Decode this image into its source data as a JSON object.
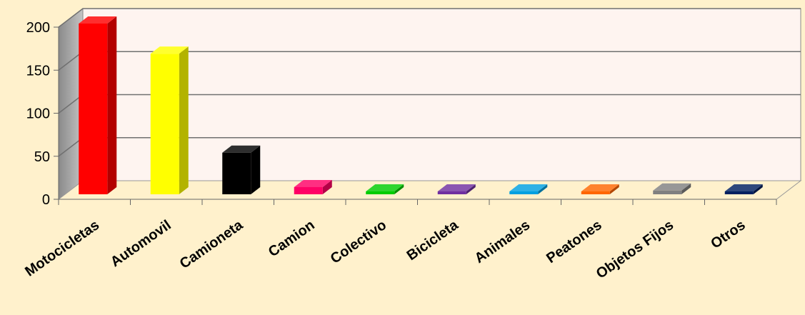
{
  "chart_data": {
    "type": "bar",
    "title": "",
    "xlabel": "",
    "ylabel": "",
    "ylim": [
      0,
      200
    ],
    "yticks": [
      "0",
      "50",
      "100",
      "150",
      "200"
    ],
    "grid": true,
    "categories": [
      "Motocicletas",
      "Automovil",
      "Camioneta",
      "Camion",
      "Colectivo",
      "Bicicleta",
      "Animales",
      "Peatones",
      "Objetos Fijos",
      "Otros"
    ],
    "values": [
      200,
      165,
      50,
      10,
      1,
      5,
      1,
      1,
      6,
      1
    ],
    "colors": [
      "#ff0000",
      "#ffff00",
      "#000000",
      "#ff0066",
      "#00cc00",
      "#7030a0",
      "#00a0e0",
      "#ff6600",
      "#808080",
      "#002060"
    ]
  }
}
